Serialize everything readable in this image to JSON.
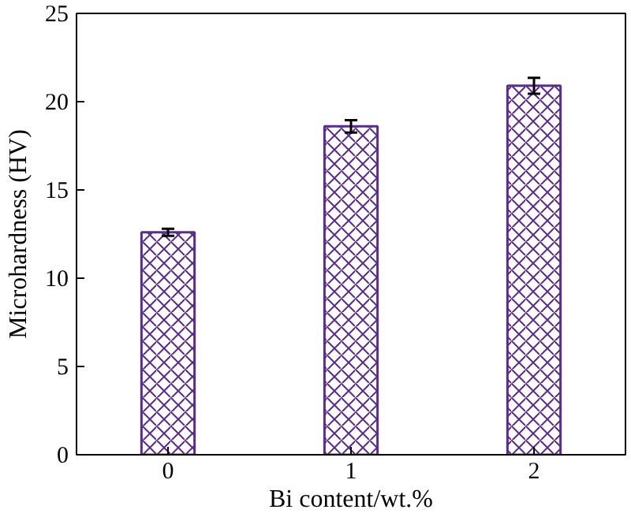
{
  "chart_data": {
    "type": "bar",
    "xlabel": "Bi content/wt.%",
    "ylabel": "Microhardness (HV)",
    "categories": [
      "0",
      "1",
      "2"
    ],
    "series": [
      {
        "color": "#5b2c8f",
        "values": [
          12.6,
          18.6,
          20.9
        ],
        "errors": [
          0.2,
          0.35,
          0.45
        ]
      }
    ],
    "ylim": [
      0,
      25
    ],
    "yticks": [
      0,
      5,
      10,
      15,
      20,
      25
    ],
    "grid": false
  }
}
